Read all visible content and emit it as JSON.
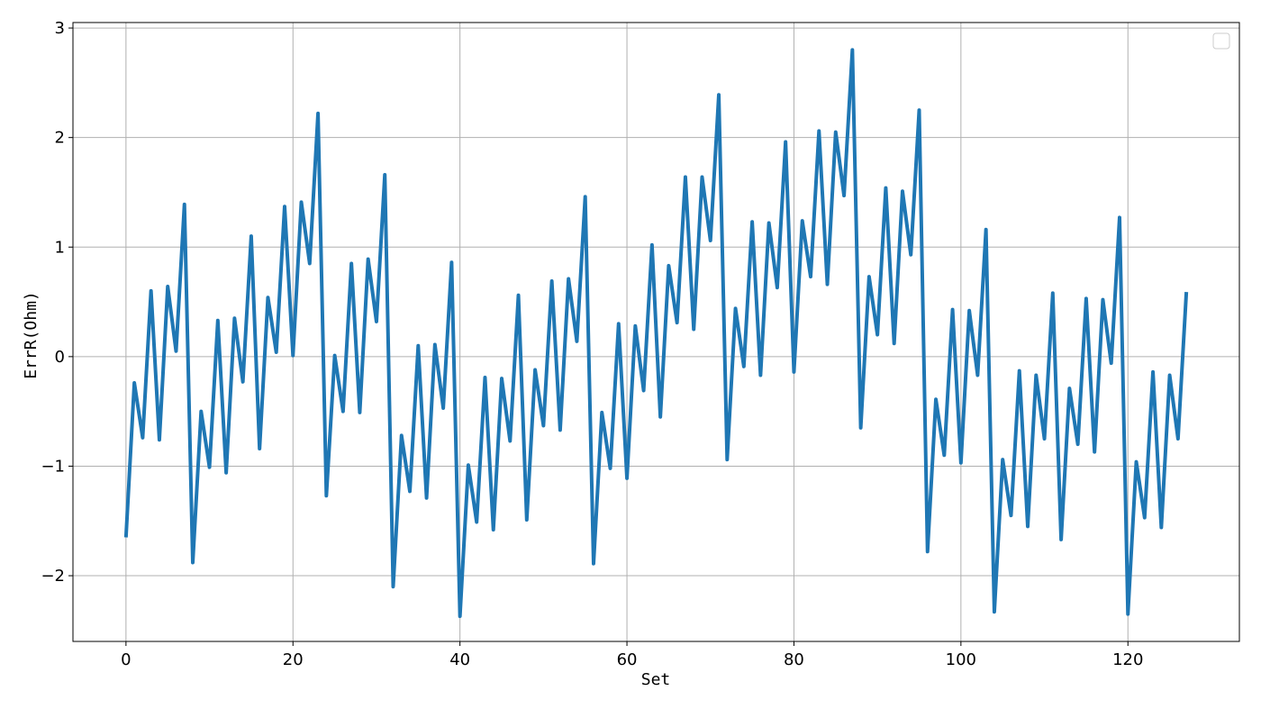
{
  "chart_data": {
    "type": "line",
    "title": "",
    "xlabel": "Set",
    "ylabel": "ErrR(Ohm)",
    "xlim": [
      -6.35,
      133.35
    ],
    "ylim": [
      -2.6,
      3.05
    ],
    "xticks": [
      0,
      20,
      40,
      60,
      80,
      100,
      120
    ],
    "yticks": [
      -2,
      -1,
      0,
      1,
      2,
      3
    ],
    "xtick_labels": [
      "0",
      "20",
      "40",
      "60",
      "80",
      "100",
      "120"
    ],
    "ytick_labels": [
      "−2",
      "−1",
      "0",
      "1",
      "2",
      "3"
    ],
    "grid": true,
    "legend": {
      "location": "top-right",
      "entries": []
    },
    "line_color": "#1f77b4",
    "series": [
      {
        "x": [
          0,
          1,
          2,
          3,
          4,
          5,
          6,
          7,
          8,
          9,
          10,
          11,
          12,
          13,
          14,
          15,
          16,
          17,
          18,
          19,
          20,
          21,
          22,
          23,
          24,
          25,
          26,
          27,
          28,
          29,
          30,
          31,
          32,
          33,
          34,
          35,
          36,
          37,
          38,
          39,
          40,
          41,
          42,
          43,
          44,
          45,
          46,
          47,
          48,
          49,
          50,
          51,
          52,
          53,
          54,
          55,
          56,
          57,
          58,
          59,
          60,
          61,
          62,
          63,
          64,
          65,
          66,
          67,
          68,
          69,
          70,
          71,
          72,
          73,
          74,
          75,
          76,
          77,
          78,
          79,
          80,
          81,
          82,
          83,
          84,
          85,
          86,
          87,
          88,
          89,
          90,
          91,
          92,
          93,
          94,
          95,
          96,
          97,
          98,
          99,
          100,
          101,
          102,
          103,
          104,
          105,
          106,
          107,
          108,
          109,
          110,
          111,
          112,
          113,
          114,
          115,
          116,
          117,
          118,
          119,
          120,
          121,
          122,
          123,
          124,
          125,
          126,
          127
        ],
        "values": [
          -1.65,
          -0.24,
          -0.74,
          0.6,
          -0.76,
          0.64,
          0.05,
          1.39,
          -1.88,
          -0.5,
          -1.01,
          0.33,
          -1.06,
          0.35,
          -0.23,
          1.1,
          -0.84,
          0.54,
          0.04,
          1.37,
          0.01,
          1.41,
          0.85,
          2.22,
          -1.27,
          0.01,
          -0.5,
          0.85,
          -0.51,
          0.89,
          0.32,
          1.66,
          -2.1,
          -0.72,
          -1.23,
          0.1,
          -1.29,
          0.11,
          -0.47,
          0.86,
          -2.37,
          -0.99,
          -1.51,
          -0.19,
          -1.58,
          -0.2,
          -0.77,
          0.56,
          -1.49,
          -0.12,
          -0.63,
          0.69,
          -0.67,
          0.71,
          0.14,
          1.46,
          -1.89,
          -0.51,
          -1.02,
          0.3,
          -1.11,
          0.28,
          -0.31,
          1.02,
          -0.55,
          0.83,
          0.31,
          1.64,
          0.25,
          1.64,
          1.06,
          2.39,
          -0.94,
          0.44,
          -0.09,
          1.23,
          -0.17,
          1.22,
          0.63,
          1.96,
          -0.14,
          1.24,
          0.73,
          2.06,
          0.66,
          2.05,
          1.47,
          2.8,
          -0.65,
          0.73,
          0.2,
          1.54,
          0.12,
          1.51,
          0.93,
          2.25,
          -1.78,
          -0.39,
          -0.9,
          0.43,
          -0.97,
          0.42,
          -0.17,
          1.16,
          -2.33,
          -0.94,
          -1.45,
          -0.13,
          -1.55,
          -0.17,
          -0.75,
          0.58,
          -1.67,
          -0.29,
          -0.8,
          0.53,
          -0.87,
          0.52,
          -0.06,
          1.27,
          -2.35,
          -0.96,
          -1.47,
          -0.14,
          -1.56,
          -0.17,
          -0.75,
          0.59
        ]
      }
    ]
  }
}
